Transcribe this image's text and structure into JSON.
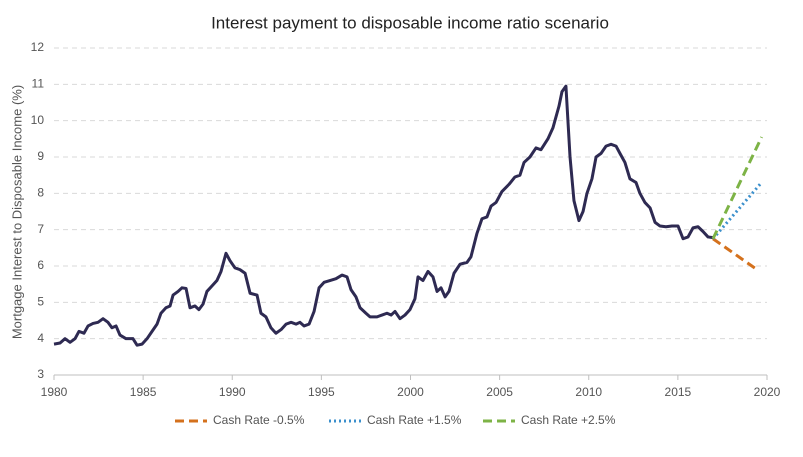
{
  "chart_data": {
    "type": "line",
    "title": "Interest payment to disposable income ratio scenario",
    "y_label": "Mortgage Interest to Disposable Income (%)",
    "xlim": [
      1980,
      2020
    ],
    "xticks": [
      1980,
      1985,
      1990,
      1995,
      2000,
      2005,
      2010,
      2015,
      2020
    ],
    "ylim": [
      3,
      12
    ],
    "yticks": [
      3,
      4,
      5,
      6,
      7,
      8,
      9,
      10,
      11,
      12
    ],
    "grid": true,
    "legend": "bottom",
    "series": [
      {
        "color": "#2e2a52",
        "style": "solid",
        "x": [
          1980.0,
          1980.34,
          1980.62,
          1980.9,
          1981.18,
          1981.4,
          1981.68,
          1981.91,
          1982.19,
          1982.47,
          1982.75,
          1983.03,
          1983.25,
          1983.48,
          1983.7,
          1984.04,
          1984.43,
          1984.66,
          1984.94,
          1985.22,
          1985.5,
          1985.78,
          1986.0,
          1986.28,
          1986.51,
          1986.68,
          1986.96,
          1987.18,
          1987.41,
          1987.63,
          1987.91,
          1988.13,
          1988.36,
          1988.58,
          1988.86,
          1989.14,
          1989.37,
          1989.65,
          1989.87,
          1990.15,
          1990.43,
          1990.72,
          1991.0,
          1991.39,
          1991.61,
          1991.89,
          1992.17,
          1992.45,
          1992.74,
          1993.02,
          1993.3,
          1993.58,
          1993.8,
          1994.03,
          1994.31,
          1994.59,
          1994.87,
          1995.15,
          1995.48,
          1995.82,
          1996.16,
          1996.44,
          1996.66,
          1996.94,
          1997.17,
          1997.5,
          1997.73,
          1998.12,
          1998.4,
          1998.68,
          1998.91,
          1999.13,
          1999.41,
          1999.69,
          1999.97,
          2000.25,
          2000.42,
          2000.7,
          2000.98,
          2001.26,
          2001.49,
          2001.71,
          2001.94,
          2002.16,
          2002.44,
          2002.78,
          2003.17,
          2003.39,
          2003.73,
          2004.01,
          2004.29,
          2004.52,
          2004.8,
          2005.13,
          2005.53,
          2005.86,
          2006.14,
          2006.37,
          2006.7,
          2007.04,
          2007.32,
          2007.71,
          2007.99,
          2008.33,
          2008.5,
          2008.72,
          2008.95,
          2009.17,
          2009.45,
          2009.68,
          2009.9,
          2010.18,
          2010.41,
          2010.69,
          2010.97,
          2011.25,
          2011.53,
          2011.75,
          2012.03,
          2012.31,
          2012.65,
          2012.87,
          2013.15,
          2013.44,
          2013.72,
          2014.0,
          2014.33,
          2014.67,
          2015.01,
          2015.29,
          2015.57,
          2015.85,
          2016.13,
          2016.41,
          2016.69,
          2016.97
        ],
        "values": [
          3.85,
          3.88,
          4.0,
          3.9,
          4.0,
          4.2,
          4.15,
          4.35,
          4.42,
          4.45,
          4.55,
          4.45,
          4.3,
          4.35,
          4.1,
          4.0,
          4.0,
          3.82,
          3.85,
          4.0,
          4.2,
          4.4,
          4.7,
          4.85,
          4.9,
          5.2,
          5.3,
          5.4,
          5.38,
          4.85,
          4.9,
          4.8,
          4.95,
          5.3,
          5.45,
          5.6,
          5.85,
          6.35,
          6.15,
          5.95,
          5.9,
          5.8,
          5.25,
          5.2,
          4.7,
          4.6,
          4.3,
          4.15,
          4.25,
          4.4,
          4.45,
          4.4,
          4.45,
          4.35,
          4.4,
          4.75,
          5.4,
          5.55,
          5.6,
          5.65,
          5.75,
          5.7,
          5.35,
          5.15,
          4.85,
          4.7,
          4.6,
          4.6,
          4.65,
          4.7,
          4.65,
          4.75,
          4.55,
          4.65,
          4.8,
          5.1,
          5.7,
          5.6,
          5.85,
          5.7,
          5.3,
          5.4,
          5.15,
          5.3,
          5.8,
          6.05,
          6.1,
          6.25,
          6.9,
          7.3,
          7.35,
          7.65,
          7.75,
          8.05,
          8.25,
          8.45,
          8.5,
          8.85,
          9.0,
          9.25,
          9.2,
          9.5,
          9.8,
          10.4,
          10.8,
          10.95,
          9.0,
          7.8,
          7.25,
          7.5,
          8.0,
          8.4,
          9.0,
          9.1,
          9.3,
          9.35,
          9.3,
          9.1,
          8.85,
          8.4,
          8.3,
          8.0,
          7.75,
          7.6,
          7.2,
          7.1,
          7.08,
          7.1,
          7.1,
          6.75,
          6.8,
          7.05,
          7.08,
          6.95,
          6.8,
          6.78
        ]
      },
      {
        "name": "Cash Rate -0.5%",
        "color": "#d4711d",
        "style": "dashed",
        "x": [
          2016.97,
          2019.44
        ],
        "values": [
          6.75,
          5.9
        ]
      },
      {
        "name": "Cash Rate +1.5%",
        "color": "#3a8fcc",
        "style": "dotted",
        "x": [
          2016.97,
          2019.7
        ],
        "values": [
          6.75,
          8.3
        ]
      },
      {
        "name": "Cash Rate +2.5%",
        "color": "#7db346",
        "style": "dashed",
        "x": [
          2016.97,
          2019.7
        ],
        "values": [
          6.75,
          9.55
        ]
      }
    ]
  }
}
